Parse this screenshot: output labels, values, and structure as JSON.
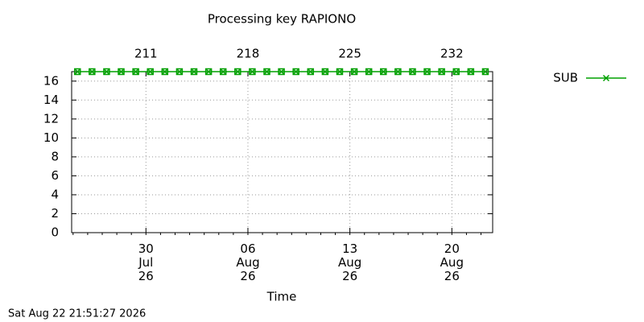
{
  "chart_data": {
    "type": "line",
    "title": "Processing key RAPIONO",
    "xlabel": "Time",
    "footer": "Sat Aug 22 21:51:27 2026",
    "x": [
      206.3,
      207.3,
      208.3,
      209.3,
      210.3,
      211.3,
      212.3,
      213.3,
      214.3,
      215.3,
      216.3,
      217.3,
      218.3,
      219.3,
      220.3,
      221.3,
      222.3,
      223.3,
      224.3,
      225.3,
      226.3,
      227.3,
      228.3,
      229.3,
      230.3,
      231.3,
      232.3,
      233.3,
      234.3
    ],
    "series": [
      {
        "name": "SUB",
        "color": "#00a000",
        "values": [
          17,
          17,
          17,
          17,
          17,
          17,
          17,
          17,
          17,
          17,
          17,
          17,
          17,
          17,
          17,
          17,
          17,
          17,
          17,
          17,
          17,
          17,
          17,
          17,
          17,
          17,
          17,
          17,
          17
        ]
      }
    ],
    "xlim": [
      205.9,
      234.8
    ],
    "xticks": [
      {
        "value": 211,
        "label": "30\nJul\n26"
      },
      {
        "value": 218,
        "label": "06\nAug\n26"
      },
      {
        "value": 225,
        "label": "13\nAug\n26"
      },
      {
        "value": 232,
        "label": "20\nAug\n26"
      }
    ],
    "x2ticks": [
      211,
      218,
      225,
      232
    ],
    "ylim": [
      0,
      17
    ],
    "yticks": [
      0,
      2,
      4,
      6,
      8,
      10,
      12,
      14,
      16
    ],
    "grid": true,
    "legend": "right"
  }
}
